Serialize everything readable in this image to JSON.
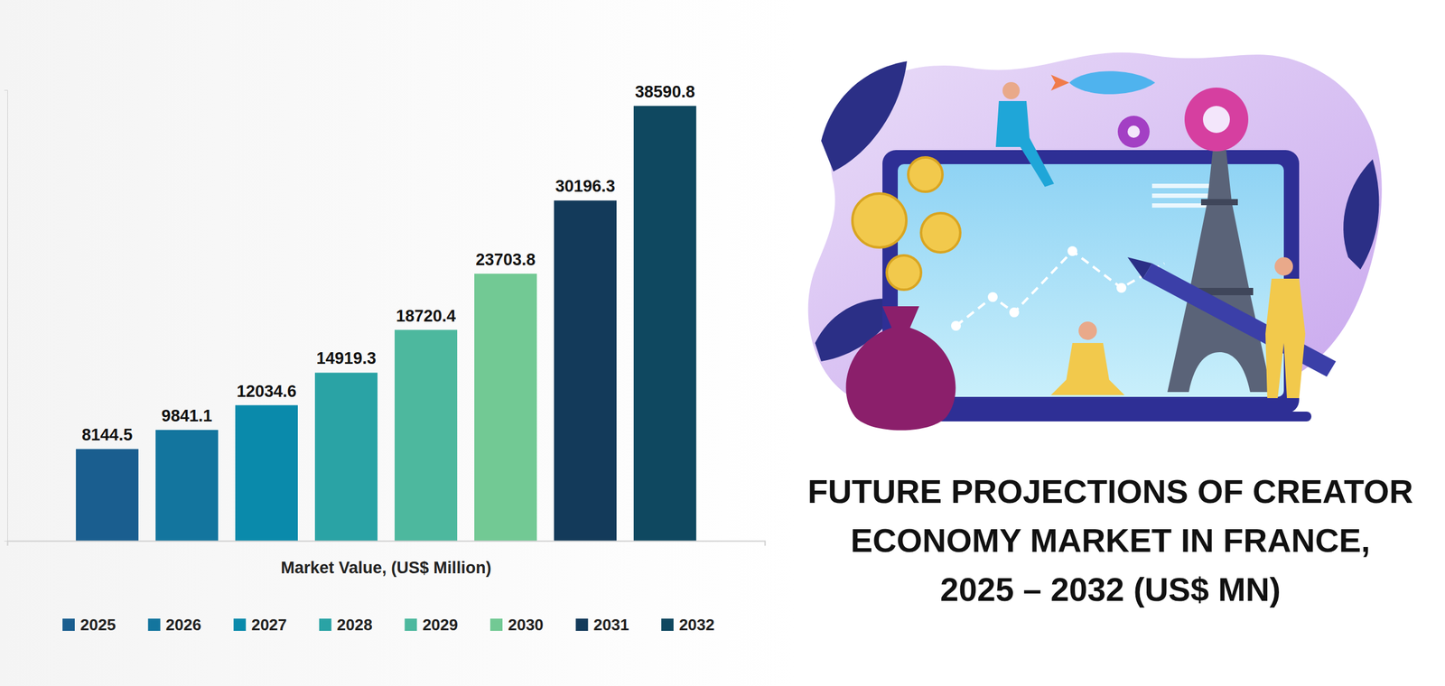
{
  "chart_data": {
    "type": "bar",
    "title": "FUTURE PROJECTIONS OF CREATOR ECONOMY MARKET IN FRANCE, 2025 – 2032 (US$ MN)",
    "xlabel": "Market Value, (US$ Million)",
    "categories": [
      "2025",
      "2026",
      "2027",
      "2028",
      "2029",
      "2030",
      "2031",
      "2032"
    ],
    "values": [
      8144.5,
      9841.1,
      12034.6,
      14919.3,
      18720.4,
      23703.8,
      30196.3,
      38590.8
    ],
    "colors": [
      "#1a5e8f",
      "#13759e",
      "#0a8aab",
      "#2aa3a5",
      "#4db89e",
      "#72c994",
      "#133a5a",
      "#0f4860"
    ],
    "ylim": [
      0,
      40000
    ],
    "yticks": [
      0,
      40000
    ],
    "data_labels": true,
    "tick_labels": false,
    "legend": "bottom",
    "grid": false
  }
}
